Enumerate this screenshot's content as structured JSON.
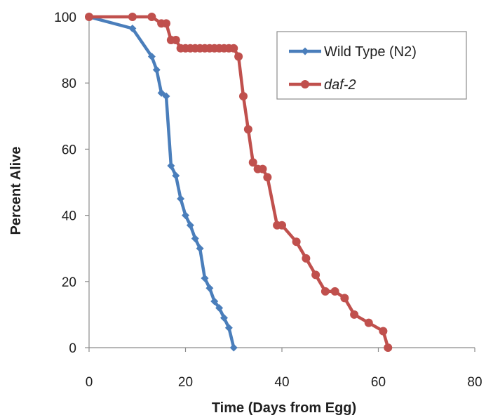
{
  "chart_data": {
    "type": "line",
    "title": "",
    "xlabel": "Time (Days from Egg)",
    "ylabel": "Percent Alive",
    "xlim": [
      0,
      80
    ],
    "ylim": [
      0,
      100
    ],
    "xticks": [
      "0",
      "20",
      "40",
      "60",
      "80"
    ],
    "yticks": [
      "0",
      "20",
      "40",
      "60",
      "80",
      "100"
    ],
    "grid": false,
    "legend_position": "top-right",
    "series": [
      {
        "name": "Wild Type (N2)",
        "color": "#4a7ebb",
        "marker": "diamond",
        "x": [
          0,
          9,
          13,
          14,
          15,
          16,
          17,
          18,
          19,
          20,
          21,
          22,
          23,
          24,
          25,
          26,
          27,
          28,
          29,
          30
        ],
        "y": [
          100,
          96.5,
          88,
          84,
          77,
          76,
          55,
          52,
          45,
          40,
          37,
          33,
          30,
          21,
          18,
          14,
          12,
          9,
          6,
          0
        ]
      },
      {
        "name": "daf-2",
        "color": "#c0504d",
        "marker": "circle",
        "x": [
          0,
          9,
          13,
          15,
          16,
          17,
          18,
          19,
          20,
          21,
          22,
          23,
          24,
          25,
          26,
          27,
          28,
          29,
          30,
          31,
          32,
          33,
          34,
          35,
          36,
          37,
          39,
          40,
          43,
          45,
          47,
          49,
          51,
          53,
          55,
          58,
          61,
          62
        ],
        "y": [
          100,
          100,
          100,
          98,
          98,
          93,
          93,
          90.5,
          90.5,
          90.5,
          90.5,
          90.5,
          90.5,
          90.5,
          90.5,
          90.5,
          90.5,
          90.5,
          90.5,
          88,
          76,
          66,
          56,
          54,
          54,
          51.5,
          37,
          37,
          32,
          27,
          22,
          17,
          17,
          15,
          10,
          7.5,
          5,
          0
        ]
      }
    ]
  }
}
